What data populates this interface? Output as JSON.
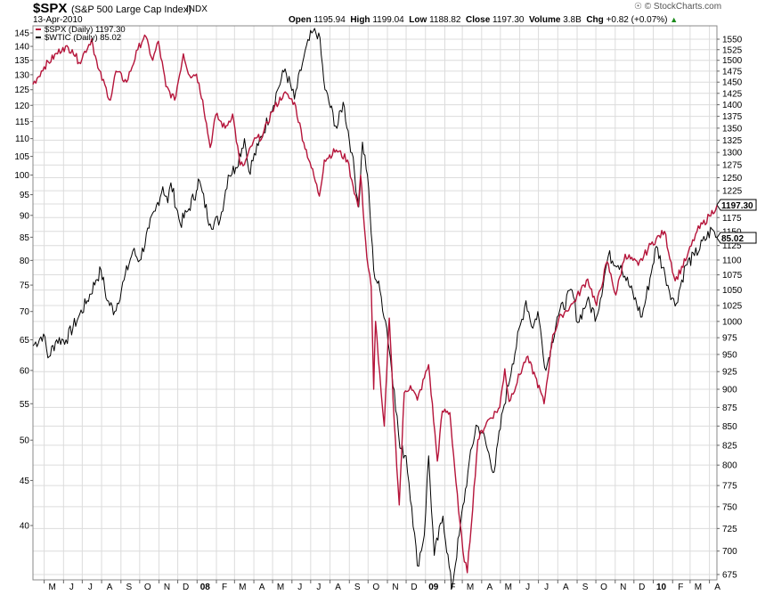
{
  "header": {
    "symbol": "$SPX",
    "description": "(S&P 500 Large Cap Index)",
    "exchange": "INDX",
    "date": "13-Apr-2010",
    "open_label": "Open",
    "open_value": "1195.94",
    "high_label": "High",
    "high_value": "1199.04",
    "low_label": "Low",
    "low_value": "1188.82",
    "close_label": "Close",
    "close_value": "1197.30",
    "volume_label": "Volume",
    "volume_value": "3.8B",
    "chg_label": "Chg",
    "chg_value": "+0.82 (+0.07%)",
    "watermark": "© StockCharts.com"
  },
  "colors": {
    "spx": "#b5143a",
    "wtic": "#000000",
    "grid": "#dcdcdc",
    "up_arrow": "#1a8a1a"
  },
  "chart_data": {
    "type": "line",
    "y_scale": "log",
    "x_range": [
      "2007-04-13",
      "2010-04-13"
    ],
    "right_axis": {
      "ticks": [
        675,
        700,
        725,
        750,
        775,
        800,
        825,
        850,
        875,
        900,
        925,
        950,
        975,
        1000,
        1025,
        1050,
        1075,
        1100,
        1125,
        1150,
        1175,
        1200,
        1225,
        1250,
        1275,
        1300,
        1325,
        1350,
        1375,
        1400,
        1425,
        1450,
        1475,
        1500,
        1525,
        1550
      ]
    },
    "left_axis": {
      "ticks": [
        40,
        45,
        50,
        55,
        60,
        65,
        70,
        75,
        80,
        85,
        90,
        95,
        100,
        105,
        110,
        115,
        120,
        125,
        130,
        135,
        140,
        145
      ]
    },
    "x_ticks": [
      "M",
      "J",
      "J",
      "A",
      "S",
      "O",
      "N",
      "D",
      "08",
      "F",
      "M",
      "A",
      "M",
      "J",
      "J",
      "A",
      "S",
      "O",
      "N",
      "D",
      "09",
      "F",
      "M",
      "A",
      "M",
      "J",
      "J",
      "A",
      "S",
      "O",
      "N",
      "D",
      "10",
      "F",
      "M",
      "A"
    ],
    "series": [
      {
        "name": "$SPX (Daily) 1197.30",
        "axis": "right",
        "last_label": "1197.30",
        "points": [
          [
            "2007-04-13",
            1445
          ],
          [
            "2007-05-01",
            1485
          ],
          [
            "2007-05-31",
            1530
          ],
          [
            "2007-06-15",
            1525
          ],
          [
            "2007-06-26",
            1495
          ],
          [
            "2007-07-16",
            1550
          ],
          [
            "2007-07-26",
            1482
          ],
          [
            "2007-08-15",
            1410
          ],
          [
            "2007-08-24",
            1475
          ],
          [
            "2007-09-10",
            1450
          ],
          [
            "2007-09-28",
            1525
          ],
          [
            "2007-10-09",
            1560
          ],
          [
            "2007-10-22",
            1500
          ],
          [
            "2007-10-31",
            1545
          ],
          [
            "2007-11-12",
            1440
          ],
          [
            "2007-11-26",
            1410
          ],
          [
            "2007-12-10",
            1515
          ],
          [
            "2007-12-20",
            1465
          ],
          [
            "2007-12-31",
            1468
          ],
          [
            "2008-01-10",
            1410
          ],
          [
            "2008-01-22",
            1310
          ],
          [
            "2008-01-31",
            1378
          ],
          [
            "2008-02-15",
            1350
          ],
          [
            "2008-02-27",
            1380
          ],
          [
            "2008-03-10",
            1275
          ],
          [
            "2008-03-17",
            1276
          ],
          [
            "2008-03-31",
            1322
          ],
          [
            "2008-04-15",
            1335
          ],
          [
            "2008-04-30",
            1385
          ],
          [
            "2008-05-19",
            1425
          ],
          [
            "2008-06-05",
            1405
          ],
          [
            "2008-06-20",
            1320
          ],
          [
            "2008-06-30",
            1280
          ],
          [
            "2008-07-15",
            1215
          ],
          [
            "2008-07-23",
            1285
          ],
          [
            "2008-08-11",
            1305
          ],
          [
            "2008-08-29",
            1285
          ],
          [
            "2008-09-05",
            1245
          ],
          [
            "2008-09-15",
            1195
          ],
          [
            "2008-09-19",
            1255
          ],
          [
            "2008-09-29",
            1105
          ],
          [
            "2008-10-06",
            1055
          ],
          [
            "2008-10-10",
            900
          ],
          [
            "2008-10-13",
            1000
          ],
          [
            "2008-10-22",
            895
          ],
          [
            "2008-10-27",
            850
          ],
          [
            "2008-11-04",
            1005
          ],
          [
            "2008-11-12",
            855
          ],
          [
            "2008-11-20",
            752
          ],
          [
            "2008-11-28",
            895
          ],
          [
            "2008-12-08",
            905
          ],
          [
            "2008-12-19",
            885
          ],
          [
            "2009-01-06",
            935
          ],
          [
            "2009-01-20",
            805
          ],
          [
            "2009-01-28",
            870
          ],
          [
            "2009-02-09",
            868
          ],
          [
            "2009-02-23",
            745
          ],
          [
            "2009-03-02",
            700
          ],
          [
            "2009-03-09",
            677
          ],
          [
            "2009-03-26",
            832
          ],
          [
            "2009-04-09",
            855
          ],
          [
            "2009-04-30",
            875
          ],
          [
            "2009-05-08",
            929
          ],
          [
            "2009-05-15",
            883
          ],
          [
            "2009-06-12",
            946
          ],
          [
            "2009-06-26",
            918
          ],
          [
            "2009-07-10",
            880
          ],
          [
            "2009-07-24",
            979
          ],
          [
            "2009-08-07",
            1010
          ],
          [
            "2009-08-25",
            1028
          ],
          [
            "2009-09-18",
            1068
          ],
          [
            "2009-10-02",
            1025
          ],
          [
            "2009-10-19",
            1097
          ],
          [
            "2009-11-02",
            1042
          ],
          [
            "2009-11-17",
            1110
          ],
          [
            "2009-12-08",
            1091
          ],
          [
            "2009-12-28",
            1127
          ],
          [
            "2010-01-19",
            1150
          ],
          [
            "2010-02-05",
            1065
          ],
          [
            "2010-02-24",
            1105
          ],
          [
            "2010-03-12",
            1150
          ],
          [
            "2010-04-01",
            1178
          ],
          [
            "2010-04-13",
            1197.3
          ]
        ]
      },
      {
        "name": "$WTIC (Daily) 85.02",
        "axis": "left",
        "last_label": "85.02",
        "points": [
          [
            "2007-04-13",
            64
          ],
          [
            "2007-04-30",
            66
          ],
          [
            "2007-05-07",
            62
          ],
          [
            "2007-05-21",
            65
          ],
          [
            "2007-06-05",
            65
          ],
          [
            "2007-06-25",
            69
          ],
          [
            "2007-07-09",
            72
          ],
          [
            "2007-07-23",
            76
          ],
          [
            "2007-07-31",
            78
          ],
          [
            "2007-08-10",
            72
          ],
          [
            "2007-08-22",
            70
          ],
          [
            "2007-09-06",
            76
          ],
          [
            "2007-09-20",
            82
          ],
          [
            "2007-10-01",
            80
          ],
          [
            "2007-10-16",
            87
          ],
          [
            "2007-10-26",
            91
          ],
          [
            "2007-11-07",
            97
          ],
          [
            "2007-11-15",
            93
          ],
          [
            "2007-11-20",
            98
          ],
          [
            "2007-12-05",
            88
          ],
          [
            "2007-12-17",
            91
          ],
          [
            "2007-12-31",
            96
          ],
          [
            "2008-01-03",
            99
          ],
          [
            "2008-01-22",
            88
          ],
          [
            "2008-02-07",
            89
          ],
          [
            "2008-02-20",
            100
          ],
          [
            "2008-03-03",
            102
          ],
          [
            "2008-03-17",
            110
          ],
          [
            "2008-03-24",
            101
          ],
          [
            "2008-04-08",
            108
          ],
          [
            "2008-04-28",
            118
          ],
          [
            "2008-05-09",
            125
          ],
          [
            "2008-05-21",
            132
          ],
          [
            "2008-06-05",
            122
          ],
          [
            "2008-06-20",
            136
          ],
          [
            "2008-07-03",
            145
          ],
          [
            "2008-07-14",
            145
          ],
          [
            "2008-07-24",
            125
          ],
          [
            "2008-08-12",
            113
          ],
          [
            "2008-08-22",
            121
          ],
          [
            "2008-09-05",
            106
          ],
          [
            "2008-09-16",
            92
          ],
          [
            "2008-09-22",
            109
          ],
          [
            "2008-09-30",
            100
          ],
          [
            "2008-10-10",
            78
          ],
          [
            "2008-10-20",
            74
          ],
          [
            "2008-10-31",
            67
          ],
          [
            "2008-11-12",
            57
          ],
          [
            "2008-11-21",
            49
          ],
          [
            "2008-12-01",
            48
          ],
          [
            "2008-12-10",
            42
          ],
          [
            "2008-12-19",
            36
          ],
          [
            "2008-12-30",
            39
          ],
          [
            "2009-01-06",
            48
          ],
          [
            "2009-01-15",
            37
          ],
          [
            "2009-01-29",
            41
          ],
          [
            "2009-02-12",
            33.9
          ],
          [
            "2009-02-24",
            39
          ],
          [
            "2009-03-10",
            46
          ],
          [
            "2009-03-23",
            52
          ],
          [
            "2009-04-02",
            51
          ],
          [
            "2009-04-21",
            46
          ],
          [
            "2009-05-05",
            54
          ],
          [
            "2009-05-20",
            61
          ],
          [
            "2009-06-11",
            72
          ],
          [
            "2009-06-22",
            67
          ],
          [
            "2009-06-30",
            70
          ],
          [
            "2009-07-13",
            60
          ],
          [
            "2009-07-31",
            69
          ],
          [
            "2009-08-24",
            74
          ],
          [
            "2009-09-02",
            68
          ],
          [
            "2009-09-17",
            72
          ],
          [
            "2009-10-02",
            69
          ],
          [
            "2009-10-21",
            81
          ],
          [
            "2009-11-10",
            79
          ],
          [
            "2009-12-14",
            69
          ],
          [
            "2009-12-31",
            79
          ],
          [
            "2010-01-06",
            83
          ],
          [
            "2010-01-20",
            77
          ],
          [
            "2010-02-05",
            71
          ],
          [
            "2010-02-22",
            79
          ],
          [
            "2010-03-08",
            81
          ],
          [
            "2010-04-05",
            86.8
          ],
          [
            "2010-04-13",
            85.02
          ]
        ]
      }
    ]
  }
}
